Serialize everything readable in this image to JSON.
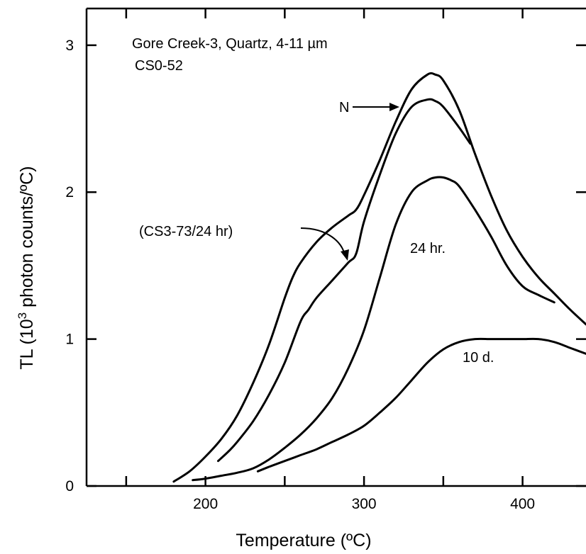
{
  "chart_data": {
    "type": "line",
    "title": "",
    "xlabel": "Temperature (ºC)",
    "ylabel_parts": {
      "before": "TL (10",
      "sup": "3",
      "after": " photon counts/ºC)"
    },
    "xlim": [
      125,
      440
    ],
    "ylim": [
      0,
      3.25
    ],
    "x_ticks": [
      {
        "value": 150,
        "label": ""
      },
      {
        "value": 200,
        "label": "200"
      },
      {
        "value": 250,
        "label": ""
      },
      {
        "value": 300,
        "label": "300"
      },
      {
        "value": 350,
        "label": ""
      },
      {
        "value": 400,
        "label": "400"
      }
    ],
    "y_ticks": [
      {
        "value": 0,
        "label": "0"
      },
      {
        "value": 1,
        "label": "1"
      },
      {
        "value": 2,
        "label": "2"
      },
      {
        "value": 3,
        "label": "3"
      }
    ],
    "grid": false,
    "annotations": {
      "sample": "Gore Creek-3, Quartz, 4-11 µm",
      "code": "CS0-52",
      "natural": "N",
      "regen": "(CS3-73/24 hr)",
      "bleach24": "24 hr.",
      "bleach10d": "10 d."
    },
    "series": [
      {
        "x": [
          180,
          190,
          200,
          210,
          220,
          230,
          240,
          250,
          255,
          260,
          270,
          280,
          290,
          295,
          300,
          310,
          320,
          330,
          340,
          345,
          350,
          360,
          370,
          380,
          390,
          400,
          410,
          420,
          430,
          440
        ],
        "y": [
          0.03,
          0.1,
          0.2,
          0.32,
          0.48,
          0.7,
          0.96,
          1.28,
          1.42,
          1.52,
          1.66,
          1.76,
          1.84,
          1.88,
          1.98,
          2.22,
          2.48,
          2.7,
          2.8,
          2.8,
          2.76,
          2.56,
          2.26,
          1.98,
          1.74,
          1.56,
          1.42,
          1.31,
          1.2,
          1.1
        ]
      },
      {
        "x": [
          208,
          215,
          220,
          230,
          240,
          250,
          260,
          265,
          270,
          280,
          290,
          295,
          300,
          310,
          320,
          330,
          340,
          345,
          350,
          360,
          367
        ],
        "y": [
          0.17,
          0.24,
          0.3,
          0.44,
          0.62,
          0.84,
          1.12,
          1.2,
          1.28,
          1.4,
          1.52,
          1.58,
          1.8,
          2.12,
          2.4,
          2.58,
          2.63,
          2.62,
          2.58,
          2.44,
          2.33
        ]
      },
      {
        "x": [
          192,
          200,
          210,
          220,
          230,
          240,
          250,
          260,
          270,
          280,
          290,
          300,
          310,
          320,
          330,
          340,
          345,
          350,
          355,
          360,
          370,
          380,
          390,
          400,
          410,
          420
        ],
        "y": [
          0.04,
          0.05,
          0.07,
          0.09,
          0.12,
          0.18,
          0.26,
          0.35,
          0.46,
          0.6,
          0.8,
          1.06,
          1.42,
          1.78,
          2.0,
          2.08,
          2.1,
          2.1,
          2.08,
          2.04,
          1.88,
          1.7,
          1.5,
          1.36,
          1.3,
          1.25
        ]
      },
      {
        "x": [
          233,
          240,
          250,
          260,
          270,
          280,
          290,
          300,
          310,
          320,
          330,
          340,
          350,
          360,
          370,
          380,
          390,
          400,
          410,
          420,
          430,
          440
        ],
        "y": [
          0.1,
          0.13,
          0.17,
          0.21,
          0.25,
          0.3,
          0.35,
          0.41,
          0.5,
          0.6,
          0.72,
          0.84,
          0.93,
          0.98,
          1.0,
          1.0,
          1.0,
          1.0,
          1.0,
          0.98,
          0.94,
          0.9
        ]
      }
    ]
  }
}
